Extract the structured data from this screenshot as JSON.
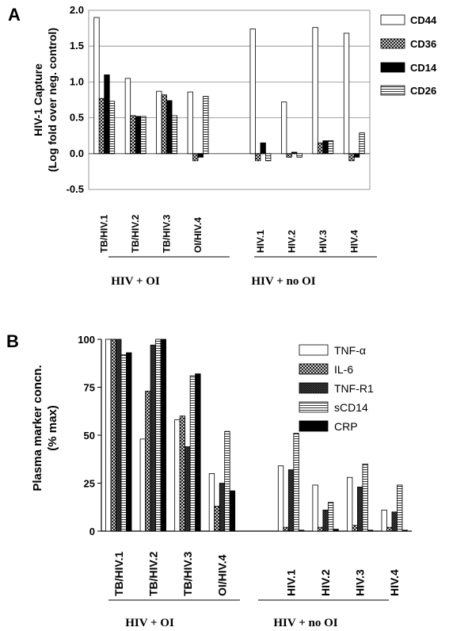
{
  "chart_data": [
    {
      "panel": "A",
      "type": "bar",
      "ylabel_line1": "HIV-1 Capture",
      "ylabel_line2": "(Log fold over neg. control)",
      "ylim": [
        -0.5,
        2.0
      ],
      "yticks": [
        "2.0",
        "1.5",
        "1.0",
        "0.5",
        "0.0",
        "-0.5"
      ],
      "grid": true,
      "legend_position": "top-right",
      "categories": [
        "TB/HIV.1",
        "TB/HIV.2",
        "TB/HIV.3",
        "OI/HIV.4",
        "",
        "HIV.1",
        "HIV.2",
        "HIV.3",
        "HIV.4"
      ],
      "groups": [
        "HIV + OI",
        "HIV + no OI"
      ],
      "series": [
        {
          "name": "CD44",
          "fill": "white",
          "values": [
            1.9,
            1.05,
            0.87,
            0.86,
            0.0,
            1.74,
            0.72,
            1.76,
            1.68
          ]
        },
        {
          "name": "CD36",
          "fill": "crosshatch",
          "values": [
            0.77,
            0.53,
            0.82,
            -0.1,
            0.0,
            -0.1,
            -0.05,
            0.15,
            -0.1
          ]
        },
        {
          "name": "CD14",
          "fill": "black",
          "values": [
            1.1,
            0.52,
            0.74,
            -0.05,
            0.0,
            0.15,
            0.02,
            0.18,
            -0.05
          ]
        },
        {
          "name": "CD26",
          "fill": "hlines",
          "values": [
            0.73,
            0.52,
            0.53,
            0.8,
            0.0,
            -0.1,
            -0.05,
            0.18,
            0.29
          ]
        }
      ]
    },
    {
      "panel": "B",
      "type": "bar",
      "ylabel_line1": "Plasma marker concn.",
      "ylabel_line2": "(% max)",
      "ylim": [
        0,
        100
      ],
      "yticks": [
        "100",
        "75",
        "50",
        "25",
        "0"
      ],
      "grid": false,
      "legend_position": "top-right",
      "categories": [
        "TB/HIV.1",
        "TB/HIV.2",
        "TB/HIV.3",
        "OI/HIV.4",
        "",
        "HIV.1",
        "HIV.2",
        "HIV.3",
        "HIV.4"
      ],
      "groups": [
        "HIV + OI",
        "HIV + no OI"
      ],
      "series": [
        {
          "name": "TNF-α",
          "fill": "white",
          "values": [
            100,
            48,
            58,
            30,
            0,
            34,
            24,
            28,
            11
          ]
        },
        {
          "name": "IL-6",
          "fill": "crosshatch",
          "values": [
            100,
            73,
            60,
            13,
            0,
            2,
            2,
            3,
            2
          ]
        },
        {
          "name": "TNF-R1",
          "fill": "dark",
          "values": [
            100,
            97,
            44,
            25,
            0,
            32,
            11,
            23,
            10
          ]
        },
        {
          "name": "sCD14",
          "fill": "hlines",
          "values": [
            92,
            100,
            81,
            52,
            0,
            51,
            15,
            35,
            24
          ]
        },
        {
          "name": "CRP",
          "fill": "black",
          "values": [
            93,
            100,
            82,
            21,
            0,
            0.5,
            1,
            0.5,
            0.5
          ]
        }
      ]
    }
  ]
}
